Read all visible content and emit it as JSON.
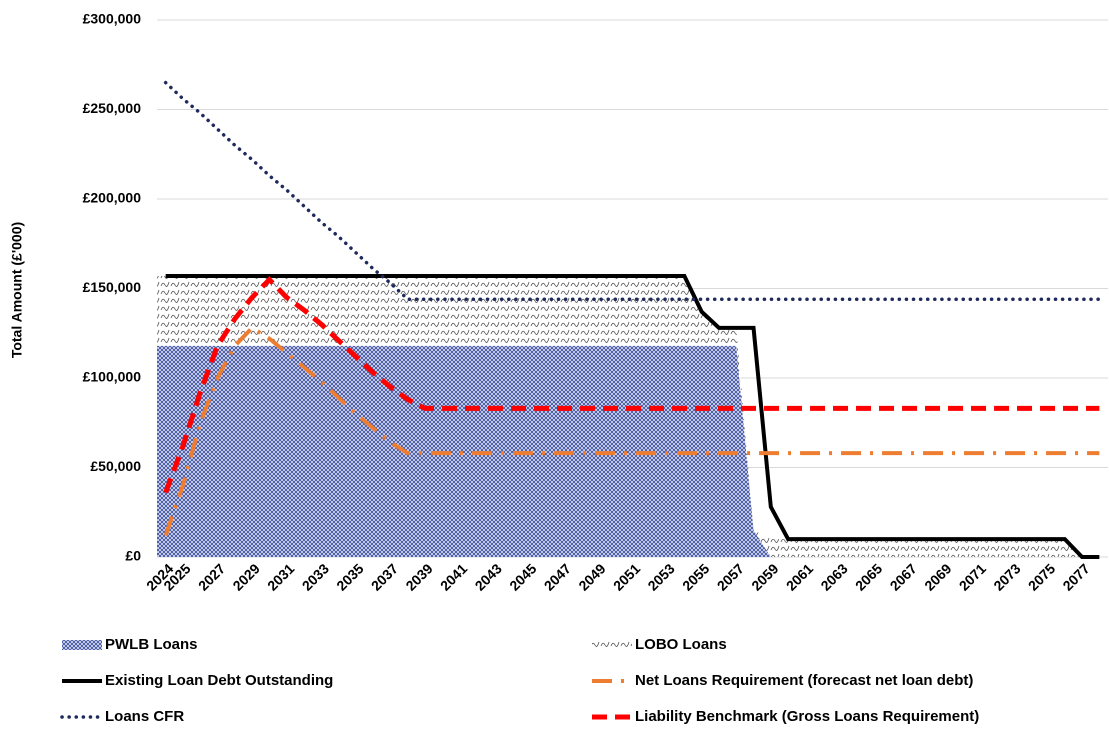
{
  "chart_data": {
    "type": "line",
    "y_label": "Total Amount (£'000)",
    "categories": [
      "2024",
      "2025",
      null,
      "2027",
      null,
      "2029",
      null,
      "2031",
      null,
      "2033",
      null,
      "2035",
      null,
      "2037",
      null,
      "2039",
      null,
      "2041",
      null,
      "2043",
      null,
      "2045",
      null,
      "2047",
      null,
      "2049",
      null,
      "2051",
      null,
      "2053",
      null,
      "2055",
      null,
      "2057",
      null,
      "2059",
      null,
      "2061",
      null,
      "2063",
      null,
      "2065",
      null,
      "2067",
      null,
      "2069",
      null,
      "2071",
      null,
      "2073",
      null,
      "2075",
      null,
      "2077",
      null
    ],
    "ylim": [
      0,
      300000
    ],
    "yticks": [
      {
        "value": 0,
        "label": "£0"
      },
      {
        "value": 50000,
        "label": "£50,000"
      },
      {
        "value": 100000,
        "label": "£100,000"
      },
      {
        "value": 150000,
        "label": "£150,000"
      },
      {
        "value": 200000,
        "label": "£200,000"
      },
      {
        "value": 250000,
        "label": "£250,000"
      },
      {
        "value": 300000,
        "label": "£300,000"
      }
    ],
    "grid": true,
    "legend": "bottom",
    "series": [
      {
        "name": "PWLB Loans",
        "kind": "area",
        "fill": "crosshatch",
        "color": "#3c4fa3",
        "values": [
          118000,
          118000,
          118000,
          118000,
          118000,
          118000,
          118000,
          118000,
          118000,
          118000,
          118000,
          118000,
          118000,
          118000,
          118000,
          118000,
          118000,
          118000,
          118000,
          118000,
          118000,
          118000,
          118000,
          118000,
          118000,
          118000,
          118000,
          118000,
          118000,
          118000,
          118000,
          118000,
          118000,
          118000,
          15000,
          0,
          0,
          0,
          0,
          0,
          0,
          0,
          0,
          0,
          0,
          0,
          0,
          0,
          0,
          0,
          0,
          0,
          0,
          0,
          0
        ]
      },
      {
        "name": "LOBO Loans",
        "kind": "area",
        "fill": "wave",
        "color": "#555555",
        "values": [
          39000,
          39000,
          39000,
          39000,
          39000,
          39000,
          39000,
          39000,
          39000,
          39000,
          39000,
          39000,
          39000,
          39000,
          39000,
          39000,
          39000,
          39000,
          39000,
          39000,
          39000,
          39000,
          39000,
          39000,
          39000,
          39000,
          39000,
          39000,
          39000,
          39000,
          39000,
          19000,
          10000,
          10000,
          0,
          10000,
          10000,
          10000,
          10000,
          10000,
          10000,
          10000,
          10000,
          10000,
          10000,
          10000,
          10000,
          10000,
          10000,
          10000,
          10000,
          10000,
          10000,
          0,
          0
        ]
      },
      {
        "name": "Existing Loan Debt Outstanding",
        "kind": "line",
        "dash": "solid",
        "color": "#000000",
        "values": [
          157000,
          157000,
          157000,
          157000,
          157000,
          157000,
          157000,
          157000,
          157000,
          157000,
          157000,
          157000,
          157000,
          157000,
          157000,
          157000,
          157000,
          157000,
          157000,
          157000,
          157000,
          157000,
          157000,
          157000,
          157000,
          157000,
          157000,
          157000,
          157000,
          157000,
          157000,
          137000,
          128000,
          128000,
          128000,
          28000,
          10000,
          10000,
          10000,
          10000,
          10000,
          10000,
          10000,
          10000,
          10000,
          10000,
          10000,
          10000,
          10000,
          10000,
          10000,
          10000,
          10000,
          0,
          0
        ]
      },
      {
        "name": "Net Loans Requirement (forecast net loan debt)",
        "kind": "line",
        "dash": "dashdot",
        "color": "#ed7d31",
        "values": [
          12000,
          40000,
          75000,
          100000,
          118000,
          128000,
          122000,
          114000,
          106000,
          98000,
          89000,
          80000,
          72000,
          64000,
          58000,
          58000,
          58000,
          58000,
          58000,
          58000,
          58000,
          58000,
          58000,
          58000,
          58000,
          58000,
          58000,
          58000,
          58000,
          58000,
          58000,
          58000,
          58000,
          58000,
          58000,
          58000,
          58000,
          58000,
          58000,
          58000,
          58000,
          58000,
          58000,
          58000,
          58000,
          58000,
          58000,
          58000,
          58000,
          58000,
          58000,
          58000,
          58000,
          58000,
          58000
        ]
      },
      {
        "name": "Loans CFR",
        "kind": "line",
        "dash": "dotted",
        "color": "#1f2a5c",
        "values": [
          265000,
          256000,
          248000,
          239000,
          230000,
          222000,
          213000,
          205000,
          196000,
          187000,
          179000,
          170000,
          161000,
          153000,
          144000,
          144000,
          144000,
          144000,
          144000,
          144000,
          144000,
          144000,
          144000,
          144000,
          144000,
          144000,
          144000,
          144000,
          144000,
          144000,
          144000,
          144000,
          144000,
          144000,
          144000,
          144000,
          144000,
          144000,
          144000,
          144000,
          144000,
          144000,
          144000,
          144000,
          144000,
          144000,
          144000,
          144000,
          144000,
          144000,
          144000,
          144000,
          144000,
          144000,
          144000
        ]
      },
      {
        "name": "Liability Benchmark (Gross Loans Requirement)",
        "kind": "line",
        "dash": "dashed",
        "color": "#ff0000",
        "values": [
          36000,
          62000,
          92000,
          118000,
          133000,
          145000,
          155000,
          145000,
          138000,
          130000,
          121000,
          112000,
          103000,
          95000,
          88000,
          83000,
          83000,
          83000,
          83000,
          83000,
          83000,
          83000,
          83000,
          83000,
          83000,
          83000,
          83000,
          83000,
          83000,
          83000,
          83000,
          83000,
          83000,
          83000,
          83000,
          83000,
          83000,
          83000,
          83000,
          83000,
          83000,
          83000,
          83000,
          83000,
          83000,
          83000,
          83000,
          83000,
          83000,
          83000,
          83000,
          83000,
          83000,
          83000,
          83000
        ]
      }
    ]
  }
}
